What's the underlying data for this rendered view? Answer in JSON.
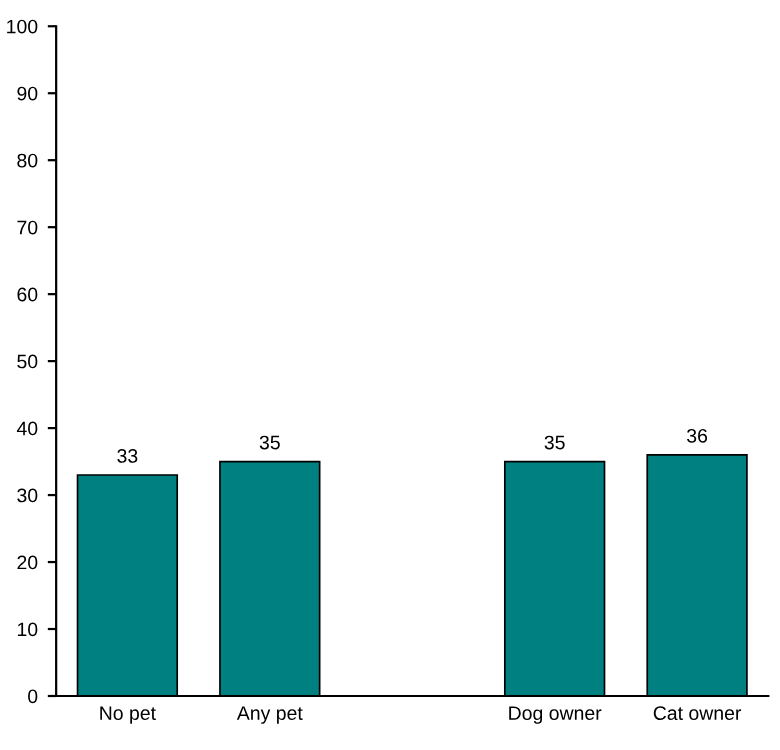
{
  "chart_data": {
    "type": "bar",
    "categories": [
      "No pet",
      "Any pet",
      null,
      "Dog owner",
      "Cat owner"
    ],
    "values": [
      33,
      35,
      null,
      35,
      36
    ],
    "color": "#008080",
    "ylim": [
      0,
      100
    ],
    "yticks": [
      0,
      10,
      20,
      30,
      40,
      50,
      60,
      70,
      80,
      90,
      100
    ],
    "data_labels": true,
    "grid": false,
    "legend": false
  }
}
